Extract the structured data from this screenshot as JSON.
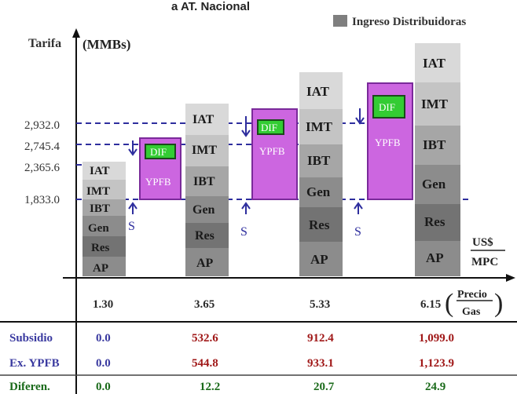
{
  "header": {
    "title_fragment": "a AT. Nacional",
    "legend_label": "Ingreso Distribuidoras"
  },
  "axis": {
    "y_label": "Tarifa",
    "y_unit": "(MMBs)",
    "y_ticks": [
      "2,932.0",
      "2,745.4",
      "2,365.6",
      "1,833.0"
    ],
    "x_unit_top": "US$",
    "x_unit_bottom": "MPC",
    "x_label_top": "Precio",
    "x_label_bottom": "Gas"
  },
  "markers": {
    "subsidy": "S",
    "dif": "DIF",
    "ypfb": "YPFB"
  },
  "columns": [
    {
      "price": "1.30",
      "blocks": [
        "IAT",
        "IMT",
        "IBT",
        "Gen",
        "Res",
        "AP"
      ]
    },
    {
      "price": "3.65",
      "blocks": [
        "IAT",
        "IMT",
        "IBT",
        "Gen",
        "Res",
        "AP"
      ]
    },
    {
      "price": "5.33",
      "blocks": [
        "IAT",
        "IMT",
        "IBT",
        "Gen",
        "Res",
        "AP"
      ]
    },
    {
      "price": "6.15",
      "blocks": [
        "IAT",
        "IMT",
        "IBT",
        "Gen",
        "Res",
        "AP"
      ]
    }
  ],
  "table": {
    "rows": [
      {
        "label": "Subsidio",
        "values": [
          "0.0",
          "532.6",
          "912.4",
          "1,099.0"
        ]
      },
      {
        "label": "Ex. YPFB",
        "values": [
          "0.0",
          "544.8",
          "933.1",
          "1,123.9"
        ]
      },
      {
        "label": "Diferen.",
        "values": [
          "0.0",
          "12.2",
          "20.7",
          "24.9"
        ]
      }
    ]
  },
  "colors": {
    "legend": "#7f7f7f",
    "purple": "#cc66e0",
    "purple_border": "#7a2a9a",
    "green": "#33cc33",
    "dashed": "#2e2e9e",
    "arrow": "#2e2e9e",
    "table_label": "#3a3aa0",
    "table_value_red": "#a01818",
    "table_value_dark": "#2b2b2b",
    "table_value_green": "#1a6a1a"
  }
}
